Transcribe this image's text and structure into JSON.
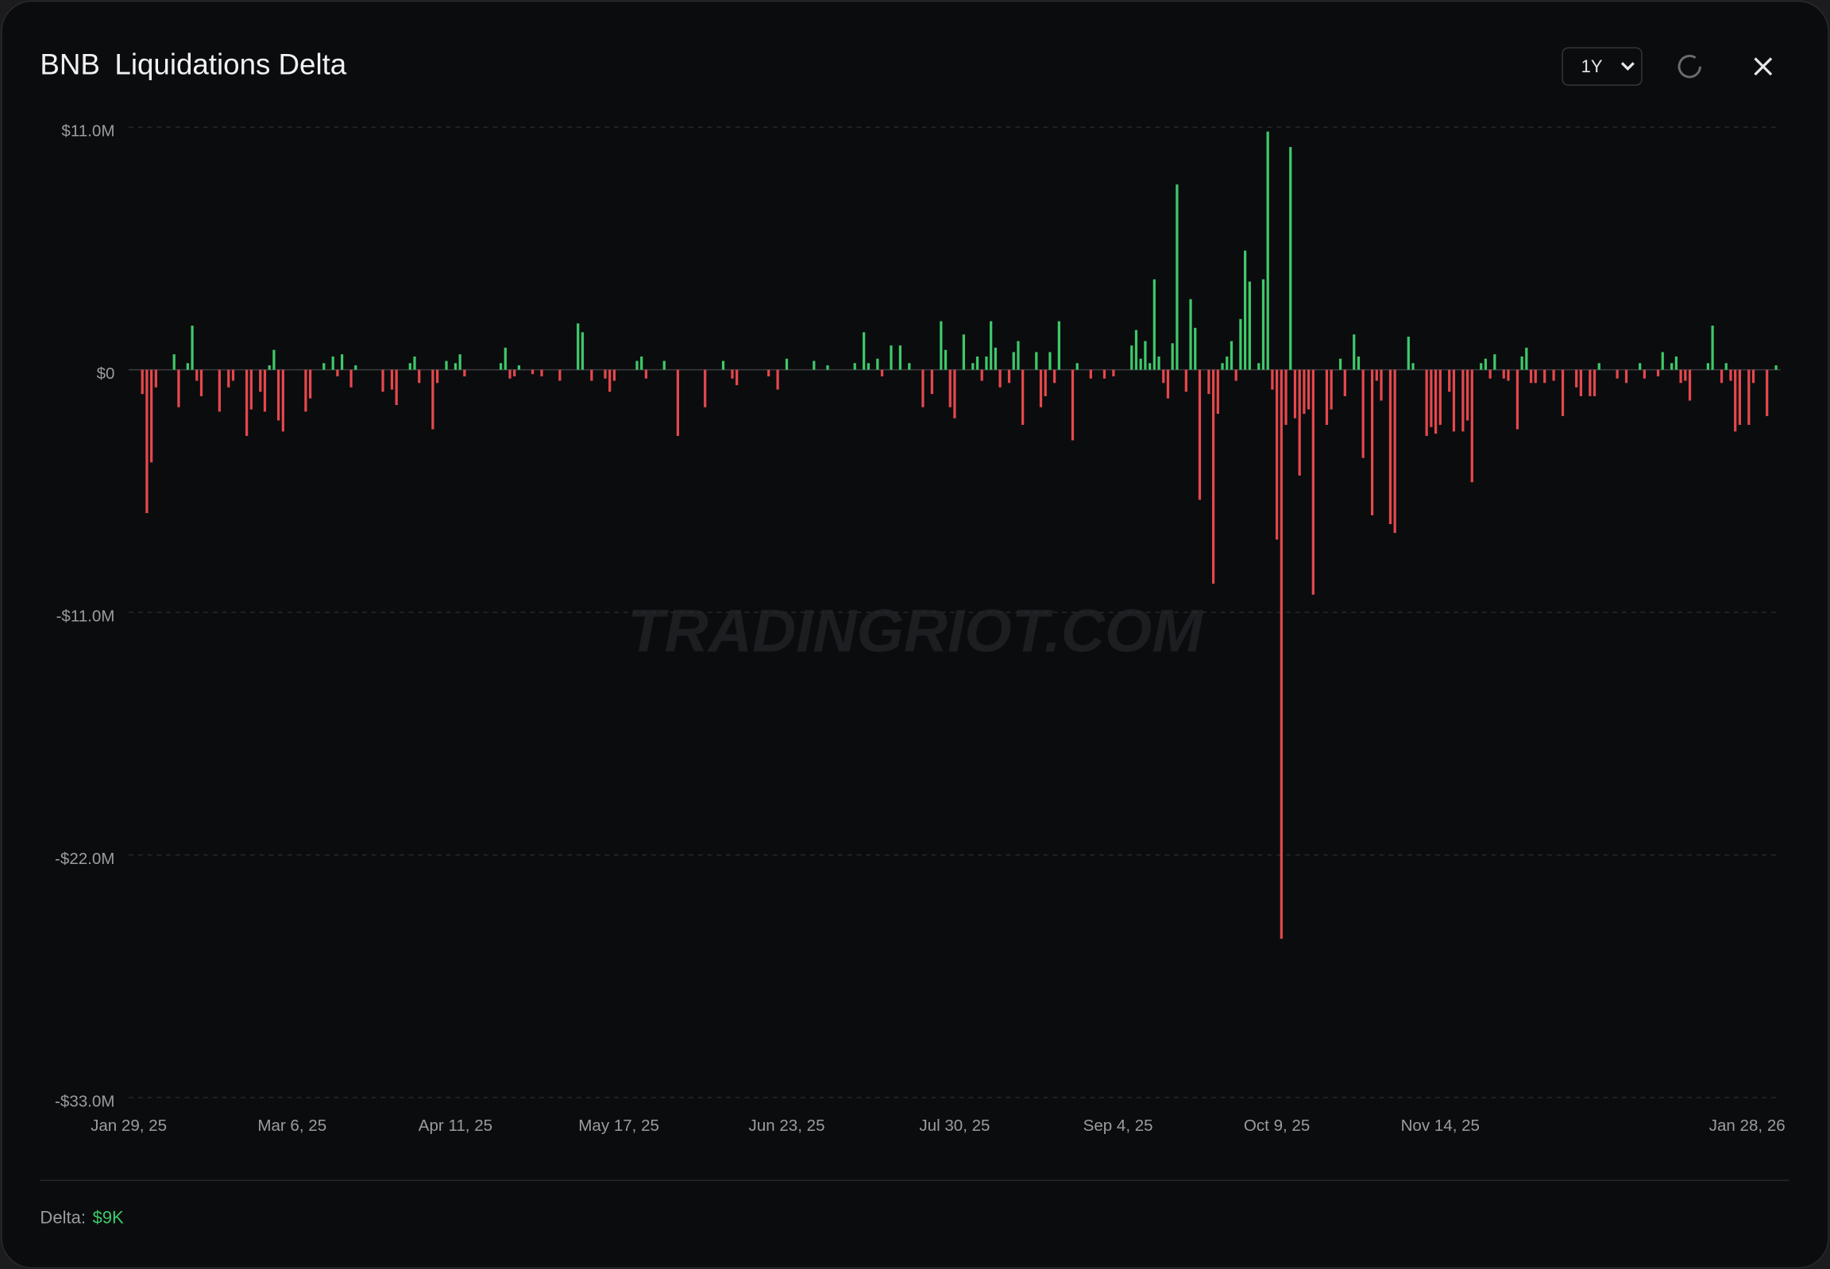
{
  "chart_data": {
    "type": "bar",
    "title": "BNB",
    "subtitle": "Liquidations Delta",
    "range_select": "1Y",
    "watermark": "TRADINGRIOT.COM",
    "footer_label": "Delta:",
    "footer_value": "$9K",
    "positive_color": "#3ec96a",
    "negative_color": "#e5484d",
    "grid": true,
    "ylim": [
      -33,
      11
    ],
    "yticks": [
      {
        "value": 11,
        "label": "$11.0M"
      },
      {
        "value": 0,
        "label": "$0"
      },
      {
        "value": -11,
        "label": "-$11.0M"
      },
      {
        "value": -22,
        "label": "-$22.0M"
      },
      {
        "value": -33,
        "label": "-$33.0M"
      }
    ],
    "xlim": [
      "2025-01-29",
      "2026-01-28"
    ],
    "xticks": [
      {
        "value": "2025-01-29",
        "label": "Jan 29, 25"
      },
      {
        "value": "2025-03-06",
        "label": "Mar 6, 25"
      },
      {
        "value": "2025-04-11",
        "label": "Apr 11, 25"
      },
      {
        "value": "2025-05-17",
        "label": "May 17, 25"
      },
      {
        "value": "2025-06-23",
        "label": "Jun 23, 25"
      },
      {
        "value": "2025-07-30",
        "label": "Jul 30, 25"
      },
      {
        "value": "2025-09-04",
        "label": "Sep 4, 25"
      },
      {
        "value": "2025-10-09",
        "label": "Oct 9, 25"
      },
      {
        "value": "2025-11-14",
        "label": "Nov 14, 25"
      },
      {
        "value": "2026-01-28",
        "label": "Jan 28, 26"
      }
    ],
    "x": [
      "2025-02-01",
      "2025-02-02",
      "2025-02-03",
      "2025-02-04",
      "2025-02-08",
      "2025-02-09",
      "2025-02-11",
      "2025-02-12",
      "2025-02-13",
      "2025-02-14",
      "2025-02-18",
      "2025-02-20",
      "2025-02-21",
      "2025-02-24",
      "2025-02-25",
      "2025-02-27",
      "2025-02-28",
      "2025-03-01",
      "2025-03-02",
      "2025-03-03",
      "2025-03-04",
      "2025-03-09",
      "2025-03-10",
      "2025-03-13",
      "2025-03-15",
      "2025-03-16",
      "2025-03-17",
      "2025-03-19",
      "2025-03-20",
      "2025-03-26",
      "2025-03-28",
      "2025-03-29",
      "2025-04-01",
      "2025-04-02",
      "2025-04-03",
      "2025-04-06",
      "2025-04-07",
      "2025-04-09",
      "2025-04-11",
      "2025-04-12",
      "2025-04-13",
      "2025-04-21",
      "2025-04-22",
      "2025-04-23",
      "2025-04-24",
      "2025-04-25",
      "2025-04-28",
      "2025-04-30",
      "2025-05-04",
      "2025-05-08",
      "2025-05-09",
      "2025-05-11",
      "2025-05-14",
      "2025-05-15",
      "2025-05-16",
      "2025-05-21",
      "2025-05-22",
      "2025-05-23",
      "2025-05-27",
      "2025-05-30",
      "2025-06-05",
      "2025-06-09",
      "2025-06-11",
      "2025-06-12",
      "2025-06-19",
      "2025-06-21",
      "2025-06-23",
      "2025-06-29",
      "2025-07-02",
      "2025-07-08",
      "2025-07-10",
      "2025-07-11",
      "2025-07-13",
      "2025-07-14",
      "2025-07-16",
      "2025-07-18",
      "2025-07-20",
      "2025-07-23",
      "2025-07-25",
      "2025-07-27",
      "2025-07-28",
      "2025-07-29",
      "2025-07-30",
      "2025-08-01",
      "2025-08-03",
      "2025-08-04",
      "2025-08-05",
      "2025-08-06",
      "2025-08-07",
      "2025-08-08",
      "2025-08-09",
      "2025-08-11",
      "2025-08-12",
      "2025-08-13",
      "2025-08-14",
      "2025-08-17",
      "2025-08-18",
      "2025-08-19",
      "2025-08-20",
      "2025-08-21",
      "2025-08-22",
      "2025-08-25",
      "2025-08-26",
      "2025-08-29",
      "2025-09-01",
      "2025-09-03",
      "2025-09-07",
      "2025-09-08",
      "2025-09-09",
      "2025-09-10",
      "2025-09-11",
      "2025-09-12",
      "2025-09-13",
      "2025-09-14",
      "2025-09-15",
      "2025-09-16",
      "2025-09-17",
      "2025-09-19",
      "2025-09-20",
      "2025-09-21",
      "2025-09-22",
      "2025-09-24",
      "2025-09-25",
      "2025-09-26",
      "2025-09-27",
      "2025-09-28",
      "2025-09-29",
      "2025-09-30",
      "2025-10-01",
      "2025-10-02",
      "2025-10-03",
      "2025-10-05",
      "2025-10-06",
      "2025-10-07",
      "2025-10-08",
      "2025-10-09",
      "2025-10-10",
      "2025-10-11",
      "2025-10-12",
      "2025-10-13",
      "2025-10-14",
      "2025-10-15",
      "2025-10-16",
      "2025-10-17",
      "2025-10-20",
      "2025-10-21",
      "2025-10-23",
      "2025-10-24",
      "2025-10-26",
      "2025-10-27",
      "2025-10-28",
      "2025-10-30",
      "2025-10-31",
      "2025-11-01",
      "2025-11-03",
      "2025-11-04",
      "2025-11-07",
      "2025-11-08",
      "2025-11-11",
      "2025-11-12",
      "2025-11-13",
      "2025-11-14",
      "2025-11-16",
      "2025-11-17",
      "2025-11-19",
      "2025-11-20",
      "2025-11-21",
      "2025-11-23",
      "2025-11-24",
      "2025-11-25",
      "2025-11-26",
      "2025-11-28",
      "2025-11-29",
      "2025-12-01",
      "2025-12-02",
      "2025-12-03",
      "2025-12-04",
      "2025-12-05",
      "2025-12-07",
      "2025-12-09",
      "2025-12-11",
      "2025-12-14",
      "2025-12-15",
      "2025-12-17",
      "2025-12-18",
      "2025-12-19",
      "2025-12-23",
      "2025-12-25",
      "2025-12-28",
      "2025-12-29",
      "2026-01-01",
      "2026-01-02",
      "2026-01-04",
      "2026-01-05",
      "2026-01-06",
      "2026-01-07",
      "2026-01-08",
      "2026-01-12",
      "2026-01-13",
      "2026-01-15",
      "2026-01-16",
      "2026-01-17",
      "2026-01-18",
      "2026-01-19",
      "2026-01-21",
      "2026-01-22",
      "2026-01-25",
      "2026-01-27"
    ],
    "values": [
      -1.1,
      -6.5,
      -4.2,
      -0.8,
      0.7,
      -1.7,
      0.3,
      2.0,
      -0.5,
      -1.2,
      -1.9,
      -0.8,
      -0.5,
      -3.0,
      -1.8,
      -1.0,
      -1.9,
      0.2,
      0.9,
      -2.3,
      -2.8,
      -1.9,
      -1.3,
      0.3,
      0.6,
      -0.3,
      0.7,
      -0.8,
      0.2,
      -1.0,
      -0.9,
      -1.6,
      0.3,
      0.6,
      -0.6,
      -2.7,
      -0.6,
      0.4,
      0.3,
      0.7,
      -0.3,
      0.3,
      1.0,
      -0.4,
      -0.3,
      0.2,
      -0.2,
      -0.3,
      -0.5,
      2.1,
      1.7,
      -0.5,
      -0.4,
      -1.0,
      -0.5,
      0.4,
      0.6,
      -0.4,
      0.4,
      -3.0,
      -1.7,
      0.4,
      -0.4,
      -0.7,
      -0.3,
      -0.9,
      0.5,
      0.4,
      0.2,
      0.3,
      1.7,
      0.3,
      0.5,
      -0.3,
      1.1,
      1.1,
      0.3,
      -1.7,
      -1.1,
      2.2,
      0.9,
      -1.7,
      -2.2,
      1.6,
      0.3,
      0.6,
      -0.5,
      0.6,
      2.2,
      1.0,
      -0.8,
      -0.6,
      0.8,
      1.3,
      -2.5,
      0.8,
      -1.7,
      -1.2,
      0.8,
      -0.6,
      2.2,
      -3.2,
      0.3,
      -0.4,
      -0.4,
      -0.3,
      1.1,
      1.8,
      0.5,
      1.3,
      0.3,
      4.1,
      0.6,
      -0.6,
      -1.3,
      1.2,
      8.4,
      -1.0,
      3.2,
      1.9,
      -5.9,
      -1.1,
      -9.7,
      -2.0,
      0.3,
      0.6,
      1.3,
      -0.5,
      2.3,
      5.4,
      4.0,
      0.3,
      4.1,
      10.8,
      -0.9,
      -7.7,
      -25.8,
      -2.5,
      10.1,
      -2.2,
      -4.8,
      -2.0,
      -1.8,
      -10.2,
      -2.5,
      -1.8,
      0.5,
      -1.2,
      1.6,
      0.6,
      -4.0,
      -6.6,
      -0.5,
      -1.4,
      -7.0,
      -7.4,
      1.5,
      0.3,
      -3.0,
      -2.6,
      -2.9,
      -2.5,
      -1.0,
      -2.8,
      -2.8,
      -2.3,
      -5.1,
      0.3,
      0.5,
      -0.4,
      0.7,
      -0.4,
      -0.5,
      -2.7,
      0.6,
      1.0,
      -0.6,
      -0.6,
      -0.6,
      -0.5,
      -2.1,
      -0.8,
      -1.2,
      -1.2,
      -1.2,
      0.3,
      -0.4,
      -0.6,
      0.3,
      -0.4,
      -0.3,
      0.8,
      0.3,
      0.6,
      -0.6,
      -0.5,
      -1.4,
      0.3,
      2.0,
      -0.6,
      0.3,
      -0.5,
      -2.8,
      -2.5,
      -2.5,
      -0.6,
      -2.1,
      0.2
    ]
  }
}
